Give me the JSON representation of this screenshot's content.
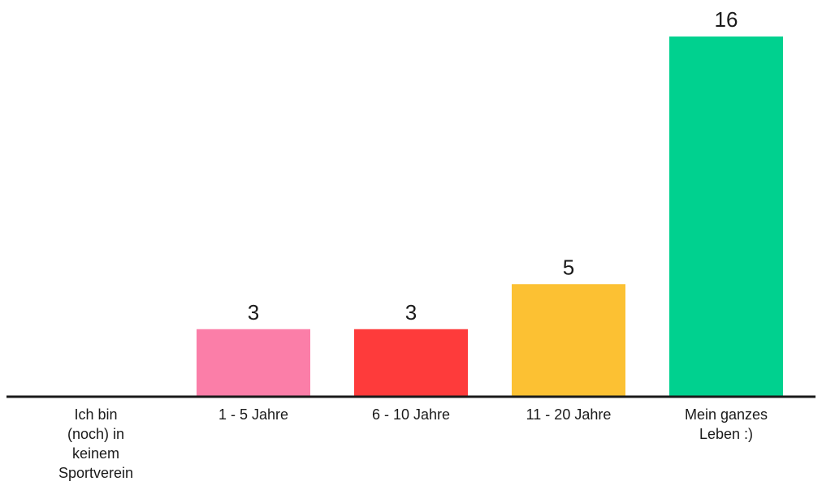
{
  "chart_data": {
    "type": "bar",
    "title": "",
    "xlabel": "",
    "ylabel": "",
    "ylim": [
      0,
      16
    ],
    "grid": false,
    "legend": "none",
    "categories": [
      "Ich bin (noch) in keinem Sportverein",
      "1 - 5 Jahre",
      "6 - 10 Jahre",
      "11 - 20 Jahre",
      "Mein ganzes Leben :)"
    ],
    "category_lines": [
      [
        "Ich bin",
        "(noch) in",
        "keinem",
        "Sportverein"
      ],
      [
        "1 - 5 Jahre"
      ],
      [
        "6 - 10 Jahre"
      ],
      [
        "11 - 20 Jahre"
      ],
      [
        "Mein ganzes",
        "Leben :)"
      ]
    ],
    "values": [
      0,
      3,
      3,
      5,
      16
    ],
    "value_labels": [
      "",
      "3",
      "3",
      "5",
      "16"
    ],
    "colors": [
      "#ffffff",
      "#fb7ea8",
      "#fe3b3b",
      "#fcc133",
      "#00d18f"
    ],
    "axis_color": "#1a1a1a"
  }
}
